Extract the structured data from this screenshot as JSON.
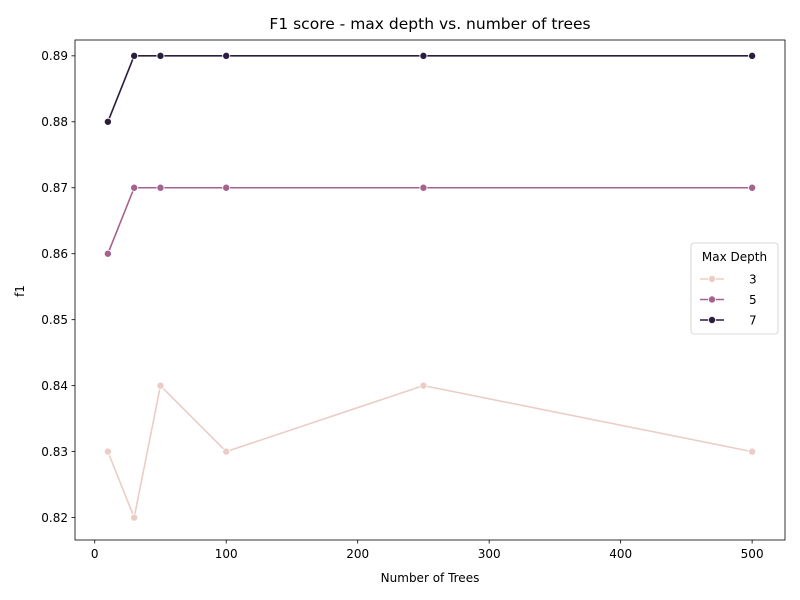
{
  "chart_data": {
    "type": "line",
    "title": "F1 score - max depth vs. number of trees",
    "xlabel": "Number of Trees",
    "ylabel": "f1",
    "xlim": [
      -15,
      525
    ],
    "ylim": [
      0.8166,
      0.8924
    ],
    "xticks": [
      0,
      100,
      200,
      300,
      400,
      500
    ],
    "yticks": [
      0.82,
      0.83,
      0.84,
      0.85,
      0.86,
      0.87,
      0.88,
      0.89
    ],
    "x": [
      10,
      30,
      50,
      100,
      250,
      500
    ],
    "legend": {
      "title": "Max Depth",
      "position": "center-right"
    },
    "grid": false,
    "series": [
      {
        "name": "3",
        "color": "#ebcdc6",
        "values": [
          0.83,
          0.82,
          0.84,
          0.83,
          0.84,
          0.83
        ]
      },
      {
        "name": "5",
        "color": "#a5628c",
        "values": [
          0.86,
          0.87,
          0.87,
          0.87,
          0.87,
          0.87
        ]
      },
      {
        "name": "7",
        "color": "#2b1d3e",
        "values": [
          0.88,
          0.89,
          0.89,
          0.89,
          0.89,
          0.89
        ]
      }
    ]
  }
}
